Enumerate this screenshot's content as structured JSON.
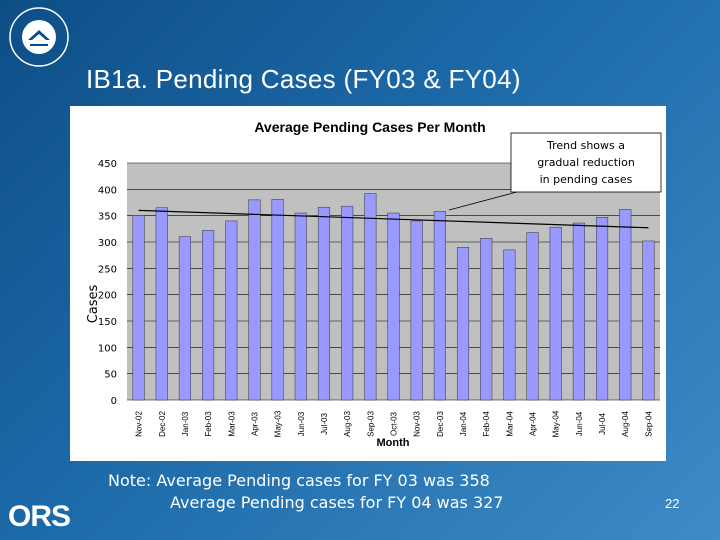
{
  "slide": {
    "title": "IB1a. Pending Cases (FY03 & FY04)",
    "note_line1": "Note: Average Pending cases for FY 03 was 358",
    "note_line2": "Average Pending cases for FY 04 was 327",
    "page_number": "22",
    "ors_logo": "ORS",
    "nih_logo_text": "NATIONAL INSTITUTES OF HEALTH"
  },
  "annotation": {
    "line1": "Trend shows a",
    "line2": "gradual reduction",
    "line3": "in pending cases"
  },
  "chart_data": {
    "type": "bar",
    "title": "Average Pending Cases Per Month",
    "xlabel": "Month",
    "ylabel": "Cases",
    "ylim": [
      0,
      450
    ],
    "yticks": [
      "0",
      "50",
      "100",
      "150",
      "200",
      "250",
      "300",
      "350",
      "400",
      "450"
    ],
    "categories": [
      "Nov-02",
      "Dec-02",
      "Jan-03",
      "Feb-03",
      "Mar-03",
      "Apr-03",
      "May-03",
      "Jun-03",
      "Jul-03",
      "Aug-03",
      "Sep-03",
      "Oct-03",
      "Nov-03",
      "Dec-03",
      "Jan-04",
      "Feb-04",
      "Mar-04",
      "Apr-04",
      "May-04",
      "Jun-04",
      "Jul-04",
      "Aug-04",
      "Sep-04"
    ],
    "values": [
      350,
      365,
      310,
      322,
      340,
      380,
      381,
      355,
      366,
      368,
      392,
      355,
      340,
      358,
      290,
      307,
      285,
      318,
      328,
      336,
      347,
      362,
      302
    ],
    "trendline": [
      360,
      327
    ],
    "colors": {
      "bar": "#9999ff",
      "plot_bg": "#c0c0c0",
      "trend": "#000000"
    },
    "grid": true
  }
}
